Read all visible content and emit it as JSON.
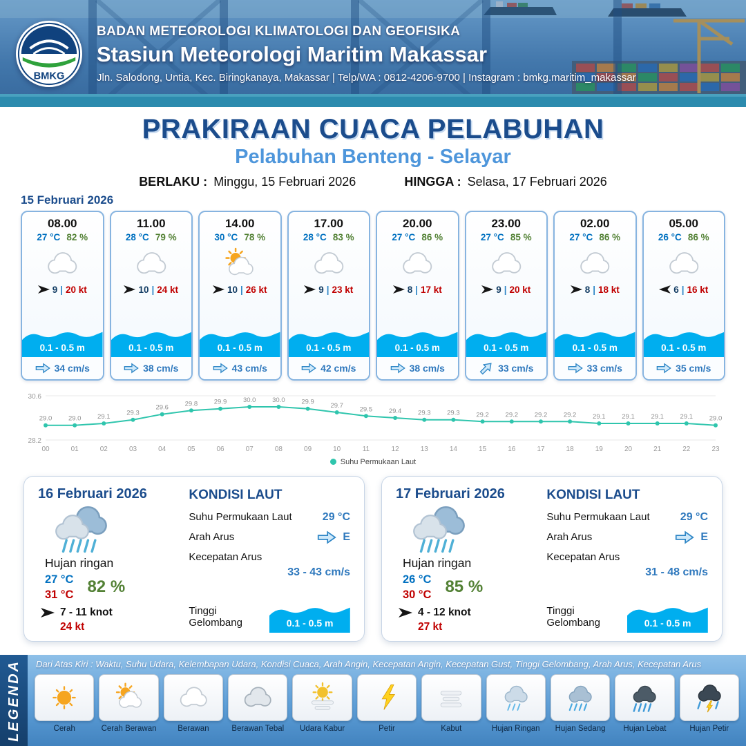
{
  "header": {
    "agency": "BADAN METEOROLOGI KLIMATOLOGI DAN GEOFISIKA",
    "station": "Stasiun Meteorologi Maritim Makassar",
    "address": "Jln. Salodong, Untia, Kec. Biringkanaya, Makassar | Telp/WA : 0812-4206-9700 | Instagram : bmkg.maritim_makassar",
    "logo_text": "BMKG"
  },
  "title": "PRAKIRAAN CUACA PELABUHAN",
  "subtitle": "Pelabuhan Benteng - Selayar",
  "validity": {
    "berlaku_label": "BERLAKU :",
    "berlaku": "Minggu, 15 Februari 2026",
    "hingga_label": "HINGGA :",
    "hingga": "Selasa, 17 Februari 2026"
  },
  "labels": {
    "sep": "|"
  },
  "day1": {
    "date": "15 Februari 2026",
    "hours": [
      {
        "time": "08.00",
        "temp": "27 °C",
        "rh": "82 %",
        "icon": "berawan",
        "wind_dir": "E",
        "wind_speed": "9",
        "gust": "20 kt",
        "wave": "0.1 - 0.5 m",
        "current_dir": "E",
        "current": "34 cm/s"
      },
      {
        "time": "11.00",
        "temp": "28 °C",
        "rh": "79 %",
        "icon": "berawan",
        "wind_dir": "E",
        "wind_speed": "10",
        "gust": "24 kt",
        "wave": "0.1 - 0.5 m",
        "current_dir": "E",
        "current": "38 cm/s"
      },
      {
        "time": "14.00",
        "temp": "30 °C",
        "rh": "78 %",
        "icon": "cerah-berawan",
        "wind_dir": "E",
        "wind_speed": "10",
        "gust": "26 kt",
        "wave": "0.1 - 0.5 m",
        "current_dir": "E",
        "current": "43 cm/s"
      },
      {
        "time": "17.00",
        "temp": "28 °C",
        "rh": "83 %",
        "icon": "berawan",
        "wind_dir": "E",
        "wind_speed": "9",
        "gust": "23 kt",
        "wave": "0.1 - 0.5 m",
        "current_dir": "E",
        "current": "42 cm/s"
      },
      {
        "time": "20.00",
        "temp": "27 °C",
        "rh": "86 %",
        "icon": "berawan",
        "wind_dir": "E",
        "wind_speed": "8",
        "gust": "17 kt",
        "wave": "0.1 - 0.5 m",
        "current_dir": "E",
        "current": "38 cm/s"
      },
      {
        "time": "23.00",
        "temp": "27 °C",
        "rh": "85 %",
        "icon": "berawan",
        "wind_dir": "E",
        "wind_speed": "9",
        "gust": "20 kt",
        "wave": "0.1 - 0.5 m",
        "current_dir": "NE",
        "current": "33 cm/s"
      },
      {
        "time": "02.00",
        "temp": "27 °C",
        "rh": "86 %",
        "icon": "berawan",
        "wind_dir": "E",
        "wind_speed": "8",
        "gust": "18 kt",
        "wave": "0.1 - 0.5 m",
        "current_dir": "E",
        "current": "33 cm/s"
      },
      {
        "time": "05.00",
        "temp": "26 °C",
        "rh": "86 %",
        "icon": "berawan",
        "wind_dir": "W",
        "wind_speed": "6",
        "gust": "16 kt",
        "wave": "0.1 - 0.5 m",
        "current_dir": "E",
        "current": "35 cm/s"
      }
    ]
  },
  "chart_data": {
    "type": "line",
    "series_name": "Suhu Permukaan Laut",
    "x": [
      "00",
      "01",
      "02",
      "03",
      "04",
      "05",
      "06",
      "07",
      "08",
      "09",
      "10",
      "11",
      "12",
      "13",
      "14",
      "15",
      "16",
      "17",
      "18",
      "19",
      "20",
      "21",
      "22",
      "23"
    ],
    "values": [
      29.0,
      29.0,
      29.1,
      29.3,
      29.6,
      29.8,
      29.9,
      30.0,
      30.0,
      29.9,
      29.7,
      29.5,
      29.4,
      29.3,
      29.3,
      29.2,
      29.2,
      29.2,
      29.2,
      29.1,
      29.1,
      29.1,
      29.1,
      29.0
    ],
    "ylim": [
      28.2,
      30.6
    ],
    "xlabel": "",
    "ylabel": "",
    "grid": false,
    "legend_position": "bottom",
    "line_color": "#2fc5ad"
  },
  "daily": [
    {
      "date": "16 Februari 2026",
      "condition": "Hujan ringan",
      "icon": "hujan-ringan-daily",
      "temp_min": "27 °C",
      "temp_max": "31 °C",
      "rh": "82 %",
      "wind_dir": "E",
      "wind": "7 - 11 knot",
      "gust": "24 kt",
      "sea": {
        "title": "KONDISI LAUT",
        "sst_label": "Suhu Permukaan Laut",
        "sst": "29 °C",
        "current_dir_label": "Arah Arus",
        "current_dir": "E",
        "current_speed_label": "Kecepatan Arus",
        "current_speed": "33 - 43 cm/s",
        "wave_label": "Tinggi Gelombang",
        "wave": "0.1 - 0.5 m"
      }
    },
    {
      "date": "17 Februari 2026",
      "condition": "Hujan ringan",
      "icon": "hujan-ringan-daily",
      "temp_min": "26 °C",
      "temp_max": "30 °C",
      "rh": "85 %",
      "wind_dir": "E",
      "wind": "4 - 12 knot",
      "gust": "27 kt",
      "sea": {
        "title": "KONDISI LAUT",
        "sst_label": "Suhu Permukaan Laut",
        "sst": "29 °C",
        "current_dir_label": "Arah Arus",
        "current_dir": "E",
        "current_speed_label": "Kecepatan Arus",
        "current_speed": "31 - 48 cm/s",
        "wave_label": "Tinggi Gelombang",
        "wave": "0.1 - 0.5 m"
      }
    }
  ],
  "legend": {
    "title": "LEGENDA",
    "description": "Dari Atas Kiri : Waktu, Suhu Udara, Kelembapan Udara, Kondisi Cuaca, Arah Angin, Kecepatan Angin, Kecepatan Gust, Tinggi Gelombang, Arah Arus, Kecepatan Arus",
    "items": [
      {
        "label": "Cerah",
        "icon": "cerah"
      },
      {
        "label": "Cerah Berawan",
        "icon": "cerah-berawan"
      },
      {
        "label": "Berawan",
        "icon": "berawan"
      },
      {
        "label": "Berawan Tebal",
        "icon": "berawan-tebal"
      },
      {
        "label": "Udara Kabur",
        "icon": "udara-kabur"
      },
      {
        "label": "Petir",
        "icon": "petir"
      },
      {
        "label": "Kabut",
        "icon": "kabut"
      },
      {
        "label": "Hujan Ringan",
        "icon": "hujan-ringan"
      },
      {
        "label": "Hujan Sedang",
        "icon": "hujan-sedang"
      },
      {
        "label": "Hujan Lebat",
        "icon": "hujan-lebat"
      },
      {
        "label": "Hujan Petir",
        "icon": "hujan-petir"
      }
    ]
  },
  "colors": {
    "accent_navy": "#1b4c8c",
    "accent_blue": "#4e96db",
    "temp_blue": "#0070c0",
    "humidity_green": "#538135",
    "gust_red": "#c00000",
    "wave_cyan": "#00aeef",
    "current_blue": "#2e78bd",
    "chart_teal": "#2fc5ad"
  }
}
